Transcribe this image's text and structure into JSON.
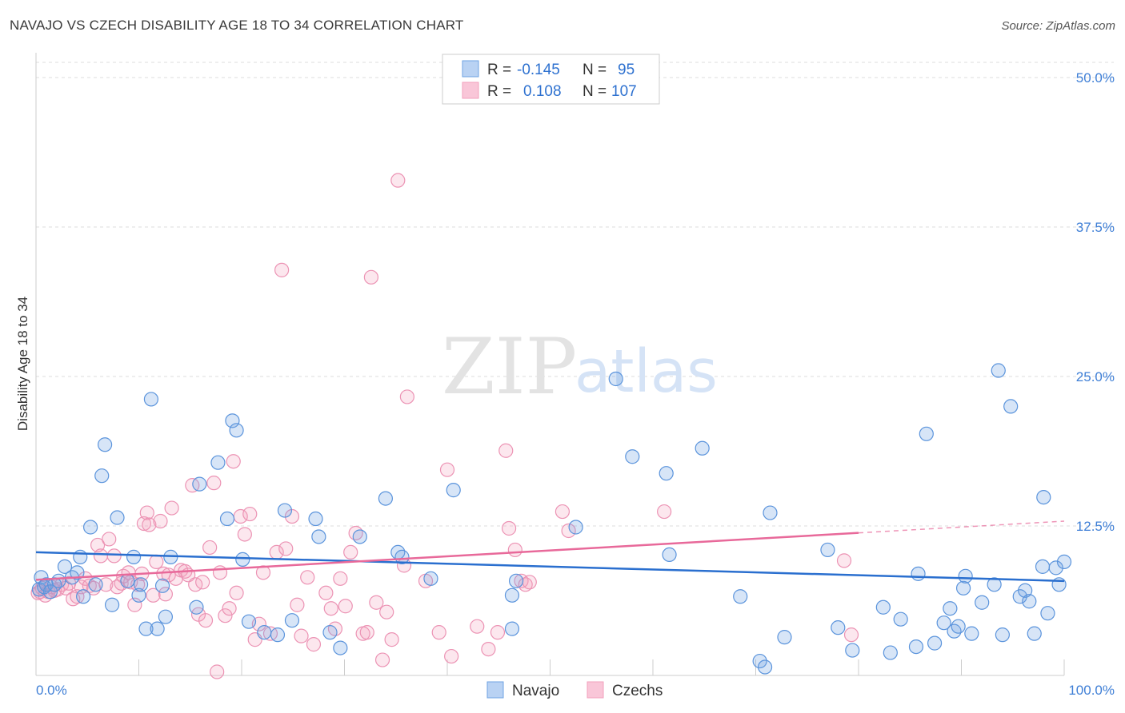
{
  "title": "NAVAJO VS CZECH DISABILITY AGE 18 TO 34 CORRELATION CHART",
  "source": "Source: ZipAtlas.com",
  "watermark": {
    "zip": "ZIP",
    "atlas": "atlas"
  },
  "colors": {
    "navajo": "#6fa3e3",
    "navajo_line": "#2a6fcf",
    "czechs": "#f2a0bd",
    "czechs_line": "#e8699a",
    "tick_label": "#3f7fd6",
    "grid": "#dddddd"
  },
  "chart_data": {
    "type": "scatter",
    "title": "NAVAJO VS CZECH DISABILITY AGE 18 TO 34 CORRELATION CHART",
    "xlabel": "",
    "ylabel": "Disability Age 18 to 34",
    "xlim": [
      0,
      100
    ],
    "ylim": [
      0,
      50
    ],
    "x_tick_labels": [
      "0.0%",
      "100.0%"
    ],
    "y_ticks": [
      12.5,
      25.0,
      37.5,
      50.0
    ],
    "y_tick_labels": [
      "12.5%",
      "25.0%",
      "37.5%",
      "50.0%"
    ],
    "legend_position": "bottom-center",
    "stats": [
      {
        "series": "Navajo",
        "r_label": "R =",
        "r": "-0.145",
        "n_label": "N =",
        "n": "95"
      },
      {
        "series": "Czechs",
        "r_label": "R =",
        "r": "0.108",
        "n_label": "N =",
        "n": "107"
      }
    ],
    "series": [
      {
        "name": "Navajo",
        "trend": {
          "x": [
            0,
            100
          ],
          "y": [
            10.3,
            7.9
          ],
          "dashed_from": null
        },
        "points": [
          [
            0.3,
            7.2
          ],
          [
            0.5,
            8.2
          ],
          [
            0.8,
            7.4
          ],
          [
            1.0,
            7.6
          ],
          [
            1.4,
            7.0
          ],
          [
            1.8,
            7.6
          ],
          [
            2.2,
            7.9
          ],
          [
            2.8,
            9.1
          ],
          [
            3.5,
            8.2
          ],
          [
            4.0,
            8.6
          ],
          [
            4.3,
            9.9
          ],
          [
            4.6,
            6.6
          ],
          [
            5.3,
            12.4
          ],
          [
            5.8,
            7.6
          ],
          [
            6.4,
            16.7
          ],
          [
            6.7,
            19.3
          ],
          [
            7.4,
            5.9
          ],
          [
            7.9,
            13.2
          ],
          [
            8.9,
            7.9
          ],
          [
            9.5,
            9.9
          ],
          [
            10.0,
            6.7
          ],
          [
            10.2,
            7.6
          ],
          [
            10.7,
            3.9
          ],
          [
            11.2,
            23.1
          ],
          [
            11.8,
            3.9
          ],
          [
            12.3,
            7.5
          ],
          [
            12.6,
            4.9
          ],
          [
            13.1,
            9.9
          ],
          [
            15.6,
            5.7
          ],
          [
            15.9,
            16.0
          ],
          [
            17.7,
            17.8
          ],
          [
            18.6,
            13.1
          ],
          [
            19.1,
            21.3
          ],
          [
            19.5,
            20.5
          ],
          [
            20.1,
            9.7
          ],
          [
            20.7,
            4.5
          ],
          [
            22.2,
            3.6
          ],
          [
            23.5,
            3.4
          ],
          [
            24.2,
            13.8
          ],
          [
            24.9,
            4.6
          ],
          [
            27.2,
            13.1
          ],
          [
            27.5,
            11.6
          ],
          [
            28.6,
            3.6
          ],
          [
            29.6,
            2.3
          ],
          [
            31.5,
            11.6
          ],
          [
            34.0,
            14.8
          ],
          [
            35.2,
            10.3
          ],
          [
            35.6,
            9.9
          ],
          [
            38.4,
            8.1
          ],
          [
            40.6,
            15.5
          ],
          [
            46.3,
            6.7
          ],
          [
            46.7,
            7.9
          ],
          [
            46.3,
            3.9
          ],
          [
            52.5,
            12.4
          ],
          [
            56.4,
            24.8
          ],
          [
            58.0,
            18.3
          ],
          [
            61.3,
            16.9
          ],
          [
            61.6,
            10.1
          ],
          [
            64.8,
            19.0
          ],
          [
            68.5,
            6.6
          ],
          [
            70.4,
            1.2
          ],
          [
            70.9,
            0.7
          ],
          [
            71.4,
            13.6
          ],
          [
            72.8,
            3.2
          ],
          [
            77.0,
            10.5
          ],
          [
            78.0,
            4.0
          ],
          [
            79.4,
            2.1
          ],
          [
            82.4,
            5.7
          ],
          [
            83.1,
            1.9
          ],
          [
            84.1,
            4.7
          ],
          [
            85.6,
            2.4
          ],
          [
            85.8,
            8.5
          ],
          [
            86.6,
            20.2
          ],
          [
            87.4,
            2.7
          ],
          [
            88.3,
            4.4
          ],
          [
            88.9,
            5.6
          ],
          [
            89.3,
            3.7
          ],
          [
            89.7,
            4.1
          ],
          [
            90.2,
            7.3
          ],
          [
            90.4,
            8.3
          ],
          [
            91.0,
            3.5
          ],
          [
            92.0,
            6.1
          ],
          [
            93.2,
            7.6
          ],
          [
            93.6,
            25.5
          ],
          [
            94.0,
            3.4
          ],
          [
            94.8,
            22.5
          ],
          [
            95.7,
            6.6
          ],
          [
            96.2,
            7.1
          ],
          [
            96.6,
            6.2
          ],
          [
            97.1,
            3.5
          ],
          [
            97.9,
            9.1
          ],
          [
            98.0,
            14.9
          ],
          [
            98.4,
            5.2
          ],
          [
            99.2,
            9.0
          ],
          [
            99.5,
            7.6
          ],
          [
            100.0,
            9.5
          ]
        ]
      },
      {
        "name": "Czechs",
        "trend": {
          "x": [
            0,
            100
          ],
          "y": [
            8.0,
            12.9
          ],
          "dashed_from": 80
        },
        "points": [
          [
            0.2,
            6.9
          ],
          [
            0.4,
            7.0
          ],
          [
            0.6,
            7.3
          ],
          [
            0.9,
            6.7
          ],
          [
            1.2,
            7.0
          ],
          [
            1.5,
            7.4
          ],
          [
            1.8,
            7.1
          ],
          [
            2.1,
            7.2
          ],
          [
            2.5,
            7.6
          ],
          [
            2.9,
            7.3
          ],
          [
            3.2,
            7.7
          ],
          [
            3.6,
            6.4
          ],
          [
            4.0,
            6.6
          ],
          [
            4.4,
            7.4
          ],
          [
            4.8,
            8.1
          ],
          [
            5.2,
            7.5
          ],
          [
            5.6,
            7.3
          ],
          [
            6.0,
            10.9
          ],
          [
            6.3,
            10.0
          ],
          [
            6.8,
            7.6
          ],
          [
            7.1,
            11.4
          ],
          [
            7.6,
            10.0
          ],
          [
            7.9,
            7.4
          ],
          [
            8.3,
            7.7
          ],
          [
            8.5,
            8.3
          ],
          [
            9.0,
            8.6
          ],
          [
            9.2,
            7.8
          ],
          [
            9.6,
            5.9
          ],
          [
            9.9,
            7.6
          ],
          [
            10.3,
            8.5
          ],
          [
            10.5,
            12.7
          ],
          [
            10.8,
            13.6
          ],
          [
            11.0,
            12.6
          ],
          [
            11.4,
            6.7
          ],
          [
            11.7,
            9.5
          ],
          [
            12.1,
            12.9
          ],
          [
            12.4,
            8.5
          ],
          [
            12.6,
            6.8
          ],
          [
            12.9,
            8.4
          ],
          [
            13.2,
            14.0
          ],
          [
            13.6,
            8.1
          ],
          [
            14.1,
            8.8
          ],
          [
            14.5,
            8.7
          ],
          [
            14.8,
            8.4
          ],
          [
            15.2,
            15.9
          ],
          [
            15.5,
            7.6
          ],
          [
            15.8,
            5.1
          ],
          [
            16.2,
            7.8
          ],
          [
            16.5,
            4.6
          ],
          [
            16.9,
            10.7
          ],
          [
            17.3,
            16.1
          ],
          [
            17.6,
            0.3
          ],
          [
            17.9,
            8.6
          ],
          [
            18.4,
            5.0
          ],
          [
            18.8,
            5.6
          ],
          [
            19.2,
            17.9
          ],
          [
            19.5,
            6.9
          ],
          [
            19.9,
            13.3
          ],
          [
            20.3,
            11.8
          ],
          [
            20.8,
            13.5
          ],
          [
            21.3,
            3.0
          ],
          [
            21.7,
            4.3
          ],
          [
            22.1,
            8.6
          ],
          [
            22.8,
            3.5
          ],
          [
            23.4,
            10.3
          ],
          [
            23.9,
            33.9
          ],
          [
            24.3,
            10.6
          ],
          [
            24.9,
            13.3
          ],
          [
            25.4,
            5.9
          ],
          [
            25.8,
            3.3
          ],
          [
            26.4,
            8.2
          ],
          [
            27.0,
            2.6
          ],
          [
            28.2,
            6.9
          ],
          [
            28.7,
            5.6
          ],
          [
            29.1,
            3.9
          ],
          [
            29.6,
            8.1
          ],
          [
            30.1,
            5.8
          ],
          [
            30.6,
            10.3
          ],
          [
            31.1,
            11.9
          ],
          [
            31.8,
            3.5
          ],
          [
            32.2,
            3.6
          ],
          [
            32.6,
            33.3
          ],
          [
            33.1,
            6.1
          ],
          [
            33.7,
            1.3
          ],
          [
            34.1,
            5.3
          ],
          [
            34.6,
            3.0
          ],
          [
            35.2,
            41.4
          ],
          [
            35.8,
            9.2
          ],
          [
            36.1,
            23.3
          ],
          [
            37.9,
            7.9
          ],
          [
            39.2,
            3.6
          ],
          [
            40.0,
            17.2
          ],
          [
            40.4,
            1.6
          ],
          [
            42.9,
            4.1
          ],
          [
            44.0,
            2.2
          ],
          [
            44.9,
            3.6
          ],
          [
            45.7,
            18.8
          ],
          [
            46.0,
            12.3
          ],
          [
            46.6,
            10.5
          ],
          [
            47.2,
            7.9
          ],
          [
            47.6,
            7.6
          ],
          [
            48.0,
            7.8
          ],
          [
            51.2,
            13.7
          ],
          [
            51.8,
            12.1
          ],
          [
            61.1,
            13.7
          ],
          [
            78.6,
            9.6
          ],
          [
            79.3,
            3.4
          ]
        ]
      }
    ]
  },
  "legend": {
    "items": [
      {
        "label": "Navajo"
      },
      {
        "label": "Czechs"
      }
    ]
  }
}
